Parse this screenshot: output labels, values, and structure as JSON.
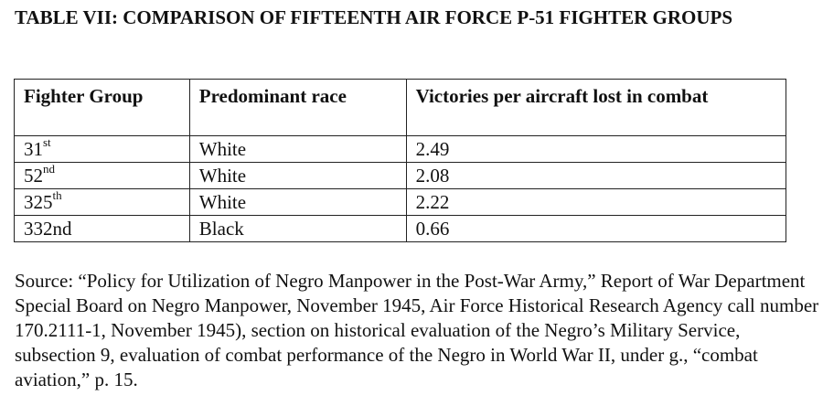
{
  "document": {
    "title": "TABLE VII: COMPARISON OF FIFTEENTH AIR FORCE P-51 FIGHTER GROUPS",
    "table": {
      "headers": [
        "Fighter Group",
        "Predominant race",
        "Victories per aircraft lost in combat"
      ],
      "rows": [
        {
          "group": "31",
          "suffix": "st",
          "race": "White",
          "ratio": "2.49"
        },
        {
          "group": "52",
          "suffix": "nd",
          "race": "White",
          "ratio": "2.08"
        },
        {
          "group": "325",
          "suffix": "th",
          "race": "White",
          "ratio": "2.22"
        },
        {
          "group": "332nd",
          "suffix": "",
          "race": "Black",
          "ratio": "0.66"
        }
      ]
    },
    "source": "Source: “Policy for Utilization of Negro Manpower in the Post-War Army,” Report of War Department Special Board on Negro Manpower, November 1945, Air Force Historical Research Agency call number 170.2111-1, November 1945), section on historical evaluation of the Negro’s Military Service, subsection 9, evaluation of combat performance of the Negro in World War II, under g., “combat aviation,” p. 15."
  }
}
